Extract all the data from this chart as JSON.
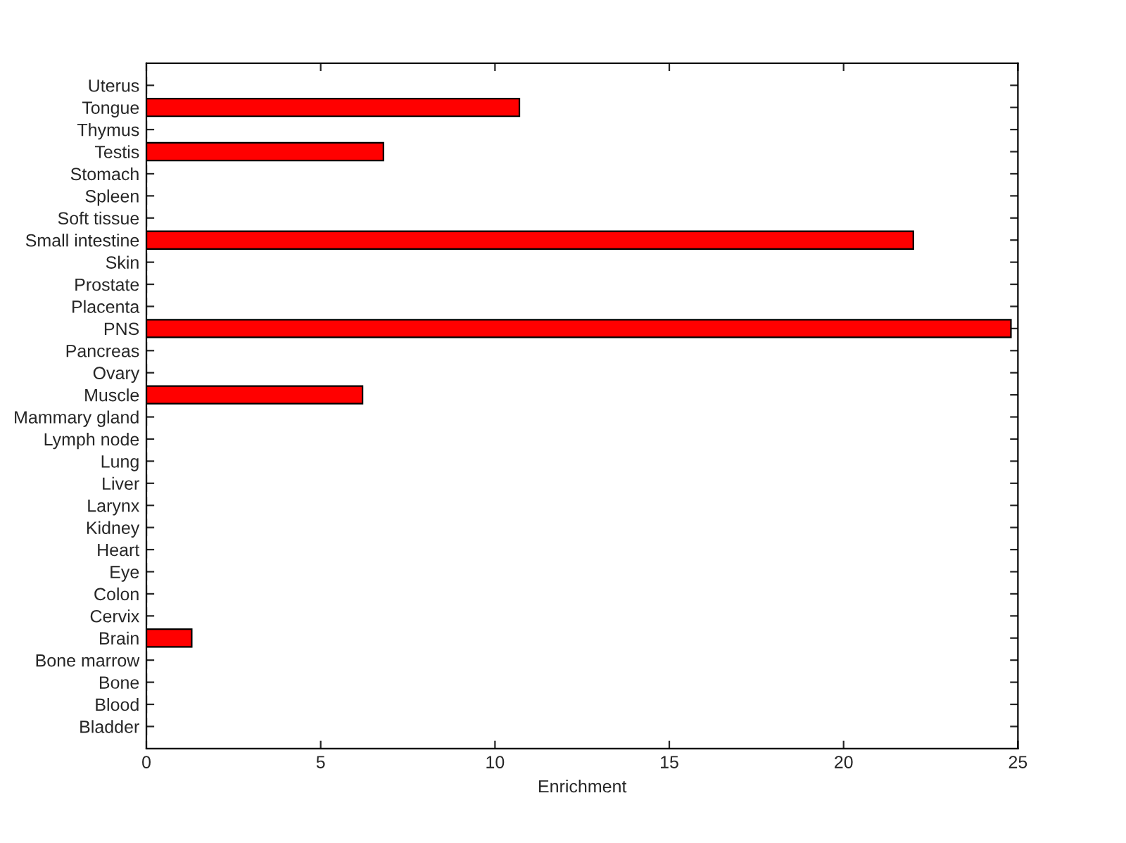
{
  "chart_data": {
    "type": "bar",
    "orientation": "horizontal",
    "xlabel": "Enrichment",
    "categories": [
      "Uterus",
      "Tongue",
      "Thymus",
      "Testis",
      "Stomach",
      "Spleen",
      "Soft tissue",
      "Small intestine",
      "Skin",
      "Prostate",
      "Placenta",
      "PNS",
      "Pancreas",
      "Ovary",
      "Muscle",
      "Mammary gland",
      "Lymph node",
      "Lung",
      "Liver",
      "Larynx",
      "Kidney",
      "Heart",
      "Eye",
      "Colon",
      "Cervix",
      "Brain",
      "Bone marrow",
      "Bone",
      "Blood",
      "Bladder"
    ],
    "values": [
      0,
      10.7,
      0,
      6.8,
      0,
      0,
      0,
      22.0,
      0,
      0,
      0,
      24.8,
      0,
      0,
      6.2,
      0,
      0,
      0,
      0,
      0,
      0,
      0,
      0,
      0,
      0,
      1.3,
      0,
      0,
      0,
      0
    ],
    "color": "#ff0000",
    "xlim": [
      0,
      25
    ],
    "xticks": [
      0,
      5,
      10,
      15,
      20,
      25
    ],
    "grid": false
  }
}
